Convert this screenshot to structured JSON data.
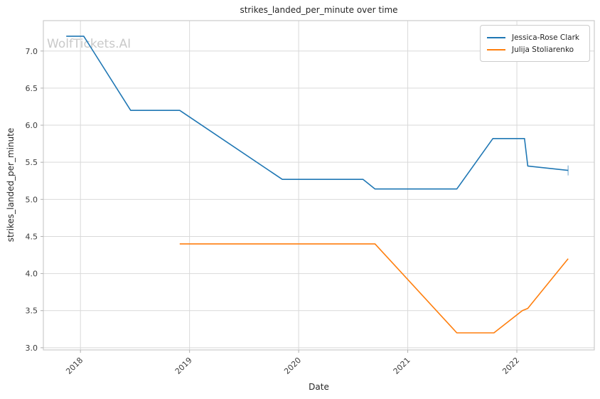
{
  "chart_data": {
    "type": "line",
    "title": "strikes_landed_per_minute over time",
    "xlabel": "Date",
    "ylabel": "strikes_landed_per_minute",
    "watermark": "WolfTickets.AI",
    "x_unit": "decimal_year",
    "xticks": [
      2018,
      2019,
      2020,
      2021,
      2022
    ],
    "yticks": [
      3.0,
      3.5,
      4.0,
      4.5,
      5.0,
      5.5,
      6.0,
      6.5,
      7.0
    ],
    "xlim": [
      2017.66,
      2022.71
    ],
    "ylim": [
      2.97,
      7.41
    ],
    "grid": true,
    "legend_position": "top-right",
    "series": [
      {
        "name": "Jessica-Rose Clark",
        "color": "#1f77b4",
        "x": [
          2017.87,
          2018.03,
          2018.46,
          2018.91,
          2019.85,
          2020.59,
          2020.7,
          2021.45,
          2021.78,
          2022.07,
          2022.1,
          2022.47
        ],
        "y": [
          7.2,
          7.2,
          6.2,
          6.2,
          5.27,
          5.27,
          5.14,
          5.14,
          5.82,
          5.82,
          5.45,
          5.39
        ],
        "end_marker": true
      },
      {
        "name": "Julija Stoliarenko",
        "color": "#ff7f0e",
        "x": [
          2018.91,
          2020.7,
          2021.45,
          2021.79,
          2022.05,
          2022.1,
          2022.47
        ],
        "y": [
          4.4,
          4.4,
          3.2,
          3.2,
          3.5,
          3.53,
          4.2
        ],
        "end_marker": false
      }
    ],
    "layout": {
      "grid_color": "#d9d9d9",
      "spine_color": "#cccccc",
      "tick_color": "#b0b0b0",
      "tick_label_color": "#3c3c3c",
      "watermark_color": "#c9c9c9",
      "background": "#ffffff"
    }
  }
}
